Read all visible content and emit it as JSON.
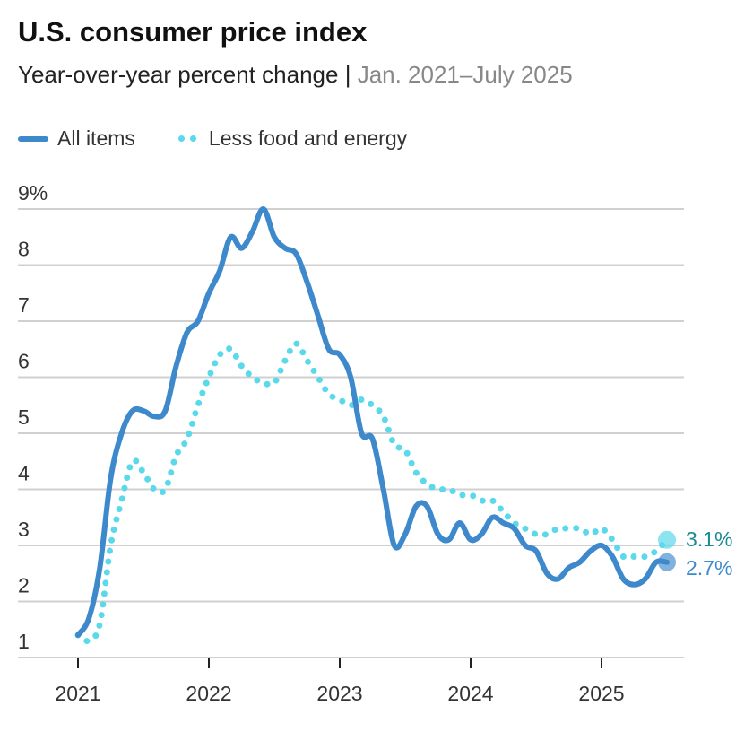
{
  "title": "U.S. consumer price index",
  "subtitle": "Year-over-year percent change",
  "separator": " | ",
  "date_range": "Jan. 2021–July 2025",
  "colors": {
    "all_items": "#3d89cc",
    "core": "#5ad9ea",
    "core_label": "#1a8a92",
    "grid": "#d0d0d0"
  },
  "chart_data": {
    "type": "line",
    "x_start": "2021-01",
    "x_end": "2025-07",
    "frequency": "monthly",
    "ylim": [
      1,
      9
    ],
    "y_ticks": [
      "1",
      "2",
      "3",
      "4",
      "5",
      "6",
      "7",
      "8",
      "9%"
    ],
    "y_tick_values": [
      1,
      2,
      3,
      4,
      5,
      6,
      7,
      8,
      9
    ],
    "x_ticks": [
      "2021",
      "2022",
      "2023",
      "2024",
      "2025"
    ],
    "grid": true,
    "legend": "top-left",
    "series": [
      {
        "name": "All items",
        "style": "solid",
        "end_label": "2.7%",
        "values": [
          1.4,
          1.7,
          2.6,
          4.2,
          5.0,
          5.4,
          5.4,
          5.3,
          5.4,
          6.2,
          6.8,
          7.0,
          7.5,
          7.9,
          8.5,
          8.3,
          8.6,
          9.0,
          8.5,
          8.3,
          8.2,
          7.7,
          7.1,
          6.5,
          6.4,
          6.0,
          5.0,
          4.9,
          4.0,
          3.0,
          3.2,
          3.7,
          3.7,
          3.2,
          3.1,
          3.4,
          3.1,
          3.2,
          3.5,
          3.4,
          3.3,
          3.0,
          2.9,
          2.5,
          2.4,
          2.6,
          2.7,
          2.9,
          3.0,
          2.8,
          2.4,
          2.3,
          2.4,
          2.7,
          2.7
        ]
      },
      {
        "name": "Less food and energy",
        "style": "dotted",
        "end_label": "3.1%",
        "values": [
          1.4,
          1.3,
          1.6,
          3.0,
          3.8,
          4.5,
          4.3,
          4.0,
          4.0,
          4.6,
          4.9,
          5.5,
          6.0,
          6.4,
          6.5,
          6.2,
          6.0,
          5.9,
          5.9,
          6.3,
          6.6,
          6.3,
          6.0,
          5.7,
          5.6,
          5.5,
          5.6,
          5.5,
          5.3,
          4.8,
          4.7,
          4.3,
          4.1,
          4.0,
          4.0,
          3.9,
          3.9,
          3.8,
          3.8,
          3.6,
          3.4,
          3.3,
          3.2,
          3.2,
          3.3,
          3.3,
          3.3,
          3.2,
          3.3,
          3.1,
          2.8,
          2.8,
          2.8,
          2.9,
          3.1
        ]
      }
    ]
  }
}
